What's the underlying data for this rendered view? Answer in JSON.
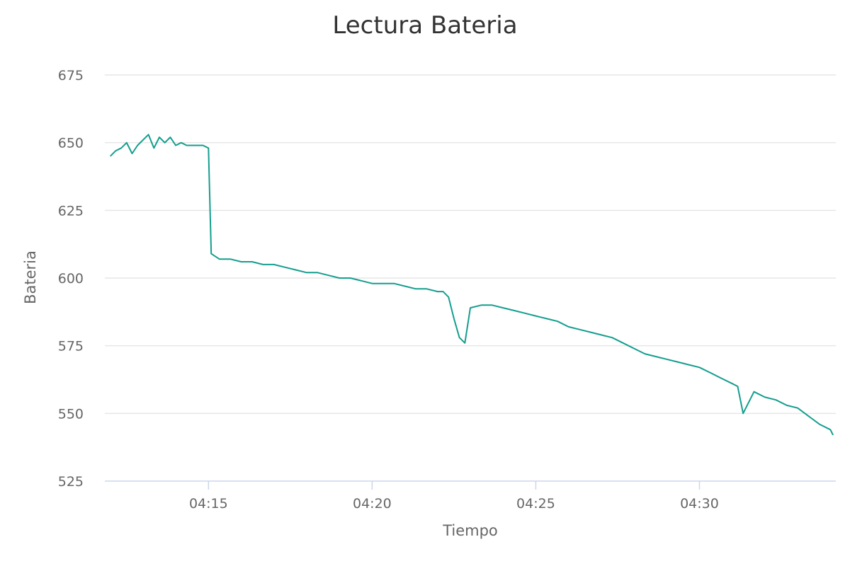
{
  "chart_data": {
    "type": "line",
    "title": "Lectura Bateria",
    "xlabel": "Tiempo",
    "ylabel": "Bateria",
    "ylim": [
      525,
      675
    ],
    "yticks": [
      525,
      550,
      575,
      600,
      625,
      650,
      675
    ],
    "xlim": [
      "04:11:50",
      "04:34:10"
    ],
    "xticks": [
      "04:15",
      "04:20",
      "04:25",
      "04:30"
    ],
    "grid": true,
    "legend": "none",
    "color": "#139e8e",
    "series": [
      {
        "x": [
          "04:12:00",
          "04:12:10",
          "04:12:20",
          "04:12:30",
          "04:12:40",
          "04:12:50",
          "04:13:00",
          "04:13:10",
          "04:13:20",
          "04:13:30",
          "04:13:40",
          "04:13:50",
          "04:14:00",
          "04:14:10",
          "04:14:20",
          "04:14:30",
          "04:14:40",
          "04:14:50",
          "04:15:00",
          "04:15:05",
          "04:15:20",
          "04:15:40",
          "04:16:00",
          "04:16:20",
          "04:16:40",
          "04:17:00",
          "04:17:20",
          "04:17:40",
          "04:18:00",
          "04:18:20",
          "04:18:40",
          "04:19:00",
          "04:19:20",
          "04:19:40",
          "04:20:00",
          "04:20:20",
          "04:20:40",
          "04:21:00",
          "04:21:20",
          "04:21:40",
          "04:22:00",
          "04:22:10",
          "04:22:20",
          "04:22:30",
          "04:22:40",
          "04:22:50",
          "04:23:00",
          "04:23:20",
          "04:23:40",
          "04:24:00",
          "04:24:20",
          "04:24:40",
          "04:25:00",
          "04:25:20",
          "04:25:40",
          "04:26:00",
          "04:26:20",
          "04:26:40",
          "04:27:00",
          "04:27:20",
          "04:27:40",
          "04:28:00",
          "04:28:20",
          "04:28:40",
          "04:29:00",
          "04:29:20",
          "04:29:40",
          "04:30:00",
          "04:30:20",
          "04:30:40",
          "04:31:00",
          "04:31:10",
          "04:31:20",
          "04:31:40",
          "04:32:00",
          "04:32:20",
          "04:32:40",
          "04:33:00",
          "04:33:20",
          "04:33:40",
          "04:34:00",
          "04:34:05"
        ],
        "y": [
          645,
          647,
          648,
          650,
          646,
          649,
          651,
          653,
          648,
          652,
          650,
          652,
          649,
          650,
          649,
          649,
          649,
          649,
          648,
          609,
          607,
          607,
          606,
          606,
          605,
          605,
          604,
          603,
          602,
          602,
          601,
          600,
          600,
          599,
          598,
          598,
          598,
          597,
          596,
          596,
          595,
          595,
          593,
          585,
          578,
          576,
          589,
          590,
          590,
          589,
          588,
          587,
          586,
          585,
          584,
          582,
          581,
          580,
          579,
          578,
          576,
          574,
          572,
          571,
          570,
          569,
          568,
          567,
          565,
          563,
          561,
          560,
          550,
          558,
          556,
          555,
          553,
          552,
          549,
          546,
          544,
          542
        ]
      }
    ]
  }
}
